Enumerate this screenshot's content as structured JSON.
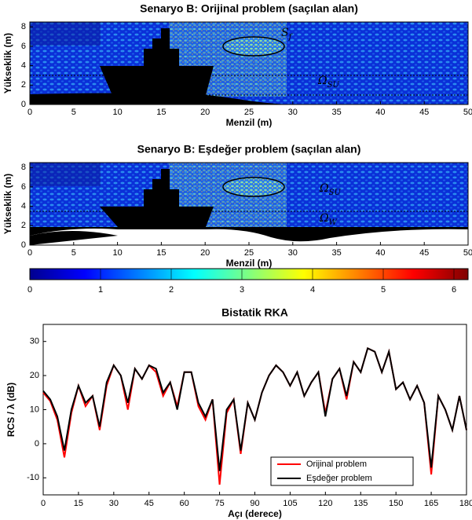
{
  "chart_data": [
    {
      "type": "heatmap",
      "title": "Senaryo B: Orijinal problem (saçılan alan)",
      "xlabel": "Menzil (m)",
      "ylabel": "Yükseklik (m)",
      "xlim": [
        0,
        50
      ],
      "ylim": [
        0,
        8.5
      ],
      "xticks": [
        0,
        5,
        10,
        15,
        20,
        25,
        30,
        35,
        40,
        45,
        50
      ],
      "yticks": [
        0,
        2,
        4,
        6,
        8
      ],
      "annotations": [
        {
          "text": "S",
          "sub": "f"
        },
        {
          "text": "Ω",
          "sub": "SU"
        }
      ]
    },
    {
      "type": "heatmap",
      "title": "Senaryo B: Eşdeğer problem (saçılan alan)",
      "xlabel": "Menzil (m)",
      "ylabel": "Yükseklik (m)",
      "xlim": [
        0,
        50
      ],
      "ylim": [
        0,
        8.5
      ],
      "xticks": [
        0,
        5,
        10,
        15,
        20,
        25,
        30,
        35,
        40,
        45,
        50
      ],
      "yticks": [
        0,
        2,
        4,
        6,
        8
      ],
      "annotations": [
        {
          "text": "Ω",
          "sub": "SU"
        },
        {
          "text": "Ω",
          "sub": "W"
        }
      ]
    },
    {
      "type": "colorbar",
      "colormap": "jet",
      "lim": [
        0,
        6.2
      ],
      "ticks": [
        0,
        1,
        2,
        3,
        4,
        5,
        6
      ]
    },
    {
      "type": "line",
      "title": "Bistatik RKA",
      "xlabel": "Açı (derece)",
      "ylabel": "RCS / λ (dB)",
      "xlim": [
        0,
        180
      ],
      "ylim": [
        -15,
        35
      ],
      "xticks": [
        0,
        15,
        30,
        45,
        60,
        75,
        90,
        105,
        120,
        135,
        150,
        165,
        180
      ],
      "yticks": [
        -10,
        0,
        10,
        20,
        30
      ],
      "legend": "lower right",
      "x": [
        0,
        3,
        6,
        9,
        12,
        15,
        18,
        21,
        24,
        27,
        30,
        33,
        36,
        39,
        42,
        45,
        48,
        51,
        54,
        57,
        60,
        63,
        66,
        69,
        72,
        75,
        78,
        81,
        84,
        87,
        90,
        93,
        96,
        99,
        102,
        105,
        108,
        111,
        114,
        117,
        120,
        123,
        126,
        129,
        132,
        135,
        138,
        141,
        144,
        147,
        150,
        153,
        156,
        159,
        162,
        165,
        168,
        171,
        174,
        177,
        180
      ],
      "series": [
        {
          "name": "Orijinal problem",
          "color": "#ff0000",
          "values": [
            15,
            12.5,
            7,
            -4,
            9,
            17,
            11,
            14,
            4,
            17,
            23,
            20,
            10,
            22,
            19,
            23,
            21,
            14,
            18,
            11,
            21,
            21,
            11,
            7,
            13,
            -12,
            9,
            13,
            -3,
            12,
            7,
            15,
            20,
            23,
            21,
            17,
            21,
            14,
            18,
            21,
            9,
            19,
            22,
            13,
            24,
            21,
            28,
            27,
            21,
            27,
            16,
            18,
            13,
            17,
            12,
            -9,
            14,
            10,
            4,
            14,
            4
          ]
        },
        {
          "name": "Eşdeğer problem",
          "color": "#000000",
          "values": [
            15.5,
            13,
            8,
            -2,
            10,
            17,
            12,
            14,
            5,
            18,
            23,
            20,
            12,
            22,
            19,
            23,
            22,
            15,
            18,
            10,
            21,
            21,
            12,
            8,
            13,
            -8,
            10,
            13,
            -2,
            12,
            7,
            15,
            20,
            23,
            21,
            17,
            21,
            14,
            18,
            21,
            8,
            19,
            22,
            14,
            24,
            21,
            28,
            27,
            21,
            27,
            16,
            18,
            13,
            17,
            12,
            -7,
            14,
            10,
            4,
            14,
            4
          ]
        }
      ]
    }
  ]
}
